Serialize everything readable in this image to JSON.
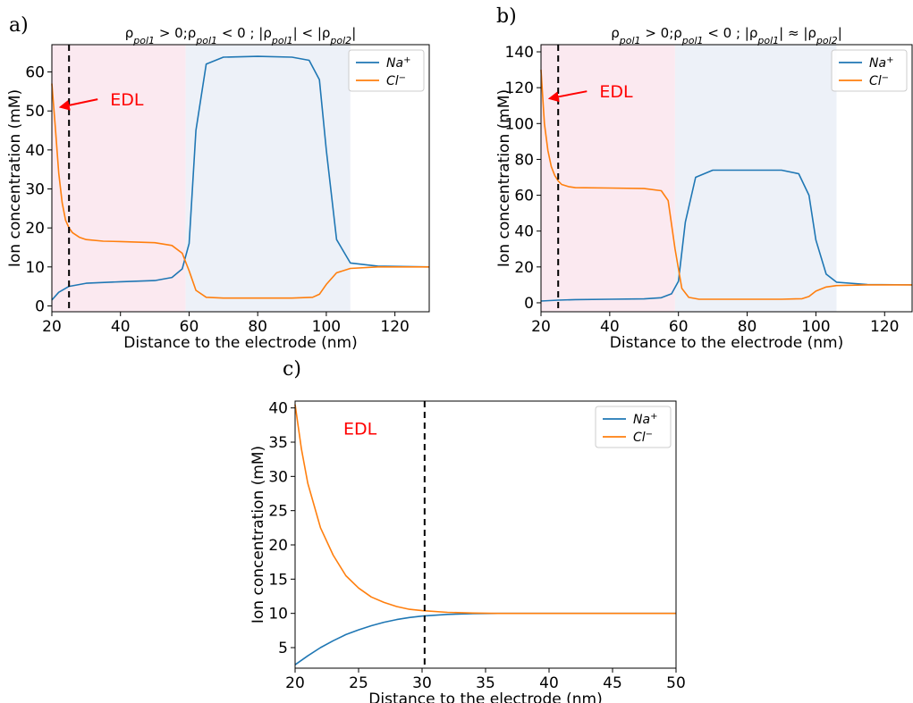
{
  "chart_data": [
    {
      "panel_label": "a)",
      "type": "line",
      "title": "ρpol1 > 0;ρpol1 < 0  ;  |ρpol1| < |ρpol2|",
      "xlabel": "Distance to the electrode  (nm)",
      "ylabel": "Ion concentration  (mM)",
      "xlim": [
        20,
        130
      ],
      "ylim": [
        -1.5,
        67
      ],
      "xticks": [
        20,
        40,
        60,
        80,
        100,
        120
      ],
      "yticks": [
        0,
        10,
        20,
        30,
        40,
        50,
        60
      ],
      "grid": false,
      "legend_position": "top-right",
      "shaded_regions": [
        {
          "x0": 20,
          "x1": 59,
          "color": "#fbe9f0"
        },
        {
          "x0": 59,
          "x1": 107,
          "color": "#edf1f8"
        }
      ],
      "vline_x": 25,
      "annotation": {
        "text": "EDL",
        "x_data": 21.5,
        "y_data": 51,
        "text_x": 37,
        "text_y": 53
      },
      "series": [
        {
          "name": "Na⁺",
          "color": "#1f77b4",
          "x": [
            20,
            22,
            25,
            30,
            40,
            50,
            55,
            58,
            60,
            62,
            65,
            70,
            80,
            90,
            95,
            98,
            100,
            103,
            107,
            115,
            130
          ],
          "y": [
            1.5,
            3.5,
            5.0,
            5.8,
            6.2,
            6.5,
            7.3,
            9.5,
            16,
            45,
            62,
            63.8,
            64,
            63.8,
            63,
            58,
            40,
            17,
            11,
            10.2,
            10
          ]
        },
        {
          "name": "Cl⁻",
          "color": "#ff7f0e",
          "x": [
            20,
            21,
            22,
            23,
            24,
            25,
            26,
            28,
            30,
            35,
            40,
            50,
            55,
            58,
            60,
            62,
            65,
            70,
            80,
            90,
            96,
            98,
            100,
            103,
            107,
            115,
            130
          ],
          "y": [
            57,
            46,
            34,
            26.5,
            22,
            20,
            18.8,
            17.6,
            17.0,
            16.6,
            16.5,
            16.2,
            15.5,
            13.5,
            9,
            4,
            2.2,
            2,
            2,
            2,
            2.2,
            3,
            5.5,
            8.5,
            9.6,
            10,
            10
          ]
        }
      ]
    },
    {
      "panel_label": "b)",
      "type": "line",
      "title": "ρpol1 > 0;ρpol1 < 0  ;  |ρpol1| ≈ |ρpol2|",
      "xlabel": "Distance to the electrode  (nm)",
      "ylabel": "Ion concentration  (mM)",
      "xlim": [
        20,
        128
      ],
      "ylim": [
        -5,
        144
      ],
      "xticks": [
        20,
        40,
        60,
        80,
        100,
        120
      ],
      "yticks": [
        0,
        20,
        40,
        60,
        80,
        100,
        120,
        140
      ],
      "grid": false,
      "legend_position": "top-right",
      "shaded_regions": [
        {
          "x0": 20,
          "x1": 59,
          "color": "#fbe9f0"
        },
        {
          "x0": 59,
          "x1": 106,
          "color": "#edf1f8"
        }
      ],
      "vline_x": 25,
      "annotation": {
        "text": "EDL",
        "x_data": 21.5,
        "y_data": 114,
        "text_x": 37,
        "text_y": 118
      },
      "series": [
        {
          "name": "Na⁺",
          "color": "#1f77b4",
          "x": [
            20,
            25,
            30,
            40,
            50,
            55,
            58,
            60,
            62,
            65,
            70,
            80,
            90,
            95,
            98,
            100,
            103,
            106,
            115,
            128
          ],
          "y": [
            1,
            1.5,
            1.8,
            2,
            2.2,
            2.8,
            5,
            12,
            45,
            70,
            74,
            74,
            74,
            72,
            60,
            35,
            16,
            11.5,
            10.2,
            10
          ]
        },
        {
          "name": "Cl⁻",
          "color": "#ff7f0e",
          "x": [
            20,
            21,
            22,
            23,
            24,
            25,
            26,
            28,
            30,
            40,
            50,
            55,
            57,
            59,
            61,
            63,
            66,
            70,
            80,
            90,
            96,
            98,
            100,
            103,
            106,
            115,
            128
          ],
          "y": [
            130,
            100,
            85,
            76,
            71,
            68,
            66,
            64.8,
            64.2,
            64,
            63.7,
            62.5,
            57,
            30,
            8,
            3,
            2,
            2,
            2,
            2,
            2.3,
            3.5,
            6.5,
            8.8,
            9.6,
            10,
            10
          ]
        }
      ]
    },
    {
      "panel_label": "c)",
      "type": "line",
      "title": "",
      "xlabel": "Distance to the electrode  (nm)",
      "ylabel": "Ion concentration  (mM)",
      "xlim": [
        20,
        50
      ],
      "ylim": [
        2,
        41
      ],
      "xticks": [
        20,
        25,
        30,
        35,
        40,
        45,
        50
      ],
      "yticks": [
        5,
        10,
        15,
        20,
        25,
        30,
        35,
        40
      ],
      "grid": false,
      "legend_position": "top-right",
      "shaded_regions": [],
      "vline_x": 30.2,
      "annotation": {
        "text": "EDL",
        "text_x": 23.8,
        "text_y": 37
      },
      "series": [
        {
          "name": "Na⁺",
          "color": "#1f77b4",
          "x": [
            20,
            21,
            22,
            23,
            24,
            25,
            26,
            27,
            28,
            29,
            30,
            32,
            34,
            36,
            40,
            45,
            50
          ],
          "y": [
            2.5,
            3.8,
            5.0,
            6.0,
            6.9,
            7.6,
            8.2,
            8.7,
            9.1,
            9.4,
            9.6,
            9.85,
            9.95,
            10,
            10,
            10,
            10
          ]
        },
        {
          "name": "Cl⁻",
          "color": "#ff7f0e",
          "x": [
            20,
            20.5,
            21,
            22,
            23,
            24,
            25,
            26,
            27,
            28,
            29,
            30,
            32,
            34,
            36,
            40,
            45,
            50
          ],
          "y": [
            40.5,
            34,
            29,
            22.5,
            18.5,
            15.5,
            13.7,
            12.4,
            11.6,
            11.0,
            10.6,
            10.4,
            10.15,
            10.05,
            10,
            10,
            10,
            10
          ]
        }
      ]
    }
  ]
}
